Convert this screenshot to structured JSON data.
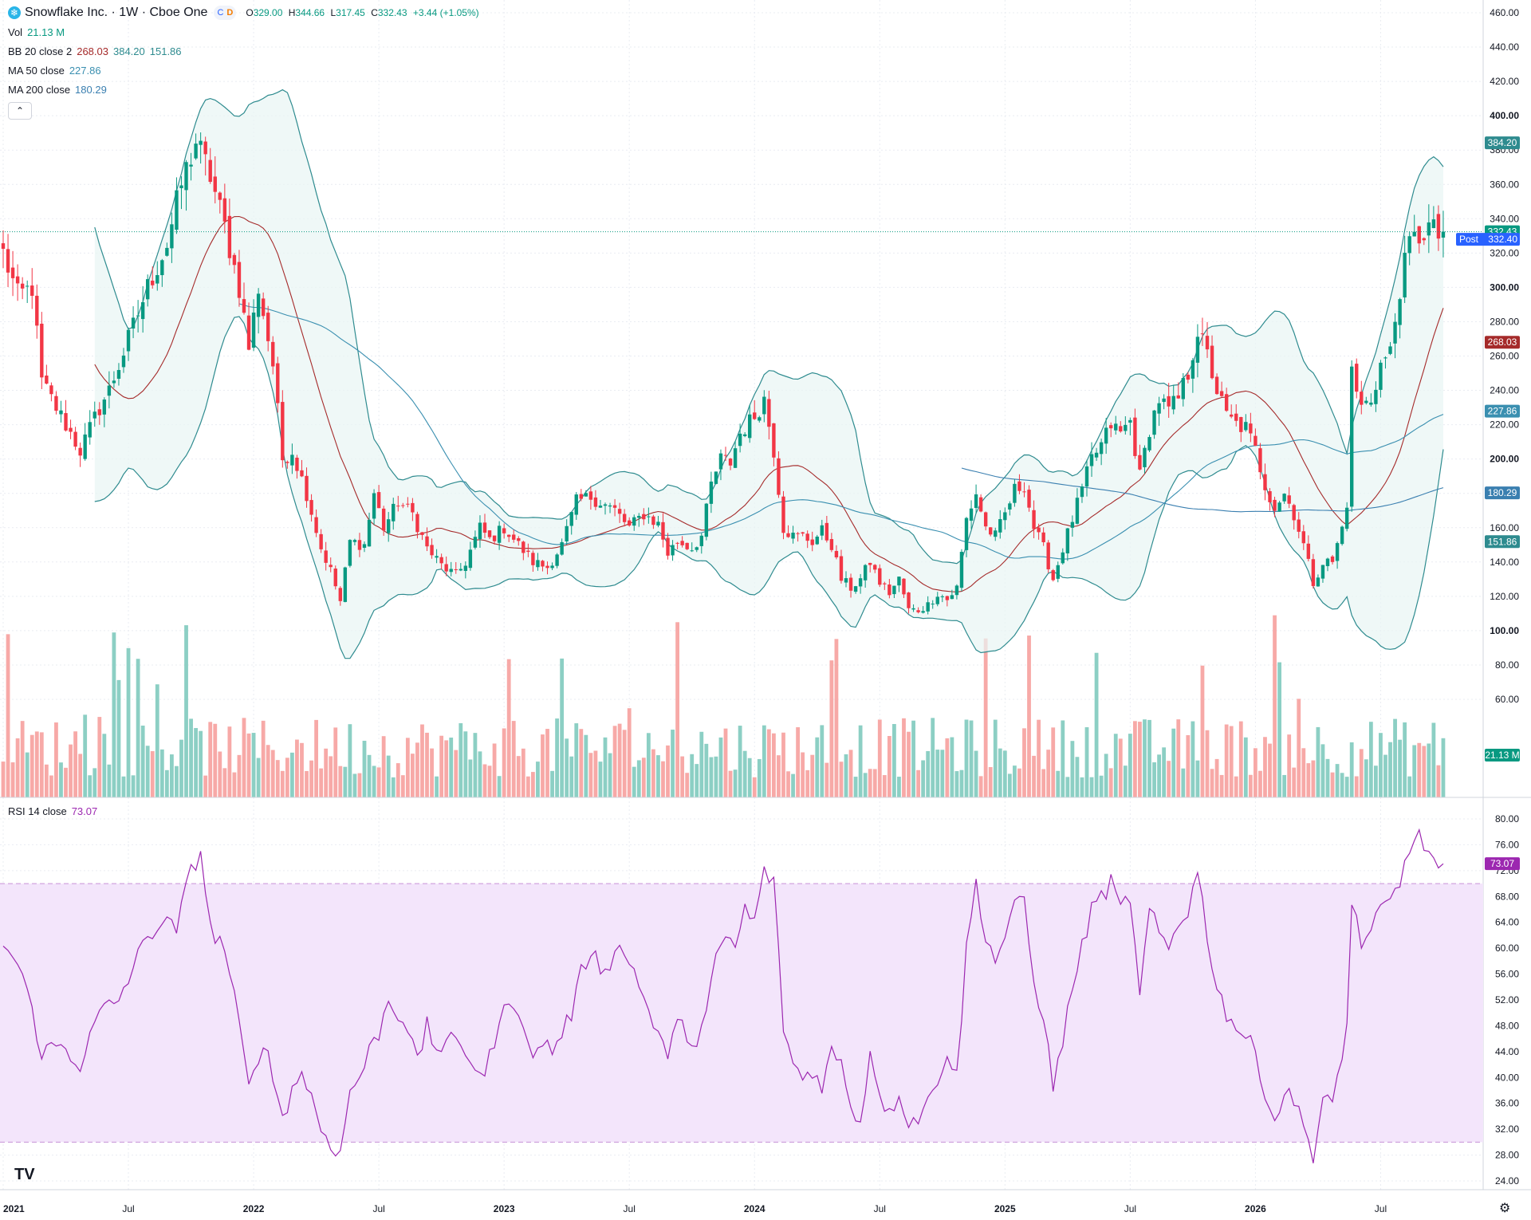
{
  "header": {
    "symbol_icon": "snowflake-icon",
    "title": "Snowflake Inc. · 1W · Cboe One",
    "badge_a": "C",
    "badge_b": "D",
    "open_label": "O",
    "open": "329.00",
    "high_label": "H",
    "high": "344.66",
    "low_label": "L",
    "low": "317.45",
    "close_label": "C",
    "close": "332.43",
    "change": "+3.44 (+1.05%)"
  },
  "legend": {
    "vol_label": "Vol",
    "vol_value": "21.13 M",
    "bb_label": "BB 20 close 2",
    "bb_mid": "268.03",
    "bb_upper": "384.20",
    "bb_lower": "151.86",
    "ma50_label": "MA 50 close",
    "ma50_value": "227.86",
    "ma200_label": "MA 200 close",
    "ma200_value": "180.29",
    "rsi_label": "RSI 14 close",
    "rsi_value": "73.07"
  },
  "collapse_icon": "chevron-up-icon",
  "tv_logo": "TV",
  "settings_icon": "gear-icon",
  "colors": {
    "up": "#089981",
    "down": "#f23645",
    "vol_up": "#8ccfc4",
    "vol_down": "#f7a9a7",
    "bb_line": "#2e8b8f",
    "bb_fill": "#e8f5f3",
    "bb_mid": "#a52a2a",
    "ma50": "#3a8fb0",
    "ma200": "#3a7fb0",
    "rsi": "#9c27b0",
    "rsi_band": "#f3e5fb",
    "last_price": "#089981",
    "post": "#2962ff"
  },
  "chart_data": [
    {
      "type": "candlestick",
      "title": "Snowflake Inc. · 1W · Cboe One",
      "timeframe": "1W",
      "x_ticks": [
        "2021",
        "Jul",
        "2022",
        "Jul",
        "2023",
        "Jul",
        "2024",
        "Jul",
        "2025",
        "Jul",
        "2026",
        "Jul"
      ],
      "y_ticks": [
        "460.00",
        "440.00",
        "420.00",
        "400.00",
        "380.00",
        "360.00",
        "340.00",
        "320.00",
        "300.00",
        "280.00",
        "260.00",
        "240.00",
        "220.00",
        "200.00",
        "180.00",
        "160.00",
        "140.00",
        "120.00",
        "100.00",
        "80.00",
        "60.00"
      ],
      "ylim": [
        53,
        463
      ],
      "last": {
        "open": 329.0,
        "high": 344.66,
        "low": 317.45,
        "close": 332.43,
        "change": 3.44,
        "change_pct": 1.05
      },
      "post_label": "Post",
      "post_price": "332.40",
      "price_labels": [
        "384.20",
        "332.43",
        "268.03",
        "227.86",
        "180.29",
        "151.86",
        "21.13 M"
      ],
      "price_anchors": [
        {
          "t": 0,
          "p": 320
        },
        {
          "t": 3,
          "p": 295
        },
        {
          "t": 6,
          "p": 300
        },
        {
          "t": 8,
          "p": 245
        },
        {
          "t": 12,
          "p": 225
        },
        {
          "t": 16,
          "p": 205
        },
        {
          "t": 20,
          "p": 230
        },
        {
          "t": 22,
          "p": 240
        },
        {
          "t": 25,
          "p": 262
        },
        {
          "t": 30,
          "p": 300
        },
        {
          "t": 34,
          "p": 325
        },
        {
          "t": 37,
          "p": 360
        },
        {
          "t": 40,
          "p": 385
        },
        {
          "t": 43,
          "p": 365
        },
        {
          "t": 46,
          "p": 335
        },
        {
          "t": 49,
          "p": 300
        },
        {
          "t": 51,
          "p": 265
        },
        {
          "t": 53,
          "p": 300
        },
        {
          "t": 56,
          "p": 255
        },
        {
          "t": 58,
          "p": 200
        },
        {
          "t": 60,
          "p": 205
        },
        {
          "t": 63,
          "p": 180
        },
        {
          "t": 66,
          "p": 148
        },
        {
          "t": 68,
          "p": 135
        },
        {
          "t": 70,
          "p": 117
        },
        {
          "t": 72,
          "p": 152
        },
        {
          "t": 75,
          "p": 150
        },
        {
          "t": 77,
          "p": 180
        },
        {
          "t": 79,
          "p": 160
        },
        {
          "t": 82,
          "p": 175
        },
        {
          "t": 85,
          "p": 168
        },
        {
          "t": 88,
          "p": 148
        },
        {
          "t": 91,
          "p": 138
        },
        {
          "t": 94,
          "p": 132
        },
        {
          "t": 96,
          "p": 140
        },
        {
          "t": 99,
          "p": 160
        },
        {
          "t": 101,
          "p": 153
        },
        {
          "t": 104,
          "p": 160
        },
        {
          "t": 107,
          "p": 150
        },
        {
          "t": 110,
          "p": 140
        },
        {
          "t": 113,
          "p": 137
        },
        {
          "t": 116,
          "p": 150
        },
        {
          "t": 119,
          "p": 175
        },
        {
          "t": 122,
          "p": 178
        },
        {
          "t": 124,
          "p": 175
        },
        {
          "t": 127,
          "p": 170
        },
        {
          "t": 130,
          "p": 160
        },
        {
          "t": 133,
          "p": 168
        },
        {
          "t": 136,
          "p": 162
        },
        {
          "t": 138,
          "p": 145
        },
        {
          "t": 140,
          "p": 152
        },
        {
          "t": 143,
          "p": 148
        },
        {
          "t": 145,
          "p": 155
        },
        {
          "t": 147,
          "p": 185
        },
        {
          "t": 149,
          "p": 200
        },
        {
          "t": 151,
          "p": 198
        },
        {
          "t": 153,
          "p": 215
        },
        {
          "t": 156,
          "p": 225
        },
        {
          "t": 158,
          "p": 235
        },
        {
          "t": 160,
          "p": 205
        },
        {
          "t": 162,
          "p": 160
        },
        {
          "t": 164,
          "p": 155
        },
        {
          "t": 166,
          "p": 155
        },
        {
          "t": 168,
          "p": 152
        },
        {
          "t": 170,
          "p": 158
        },
        {
          "t": 172,
          "p": 150
        },
        {
          "t": 174,
          "p": 130
        },
        {
          "t": 176,
          "p": 125
        },
        {
          "t": 178,
          "p": 130
        },
        {
          "t": 180,
          "p": 140
        },
        {
          "t": 182,
          "p": 128
        },
        {
          "t": 184,
          "p": 122
        },
        {
          "t": 186,
          "p": 130
        },
        {
          "t": 188,
          "p": 112
        },
        {
          "t": 190,
          "p": 112
        },
        {
          "t": 192,
          "p": 115
        },
        {
          "t": 194,
          "p": 122
        },
        {
          "t": 196,
          "p": 118
        },
        {
          "t": 198,
          "p": 125
        },
        {
          "t": 200,
          "p": 165
        },
        {
          "t": 202,
          "p": 180
        },
        {
          "t": 204,
          "p": 160
        },
        {
          "t": 206,
          "p": 155
        },
        {
          "t": 208,
          "p": 168
        },
        {
          "t": 210,
          "p": 182
        },
        {
          "t": 212,
          "p": 185
        },
        {
          "t": 214,
          "p": 160
        },
        {
          "t": 216,
          "p": 148
        },
        {
          "t": 218,
          "p": 130
        },
        {
          "t": 220,
          "p": 148
        },
        {
          "t": 222,
          "p": 165
        },
        {
          "t": 224,
          "p": 182
        },
        {
          "t": 226,
          "p": 200
        },
        {
          "t": 228,
          "p": 208
        },
        {
          "t": 230,
          "p": 220
        },
        {
          "t": 232,
          "p": 215
        },
        {
          "t": 234,
          "p": 222
        },
        {
          "t": 236,
          "p": 190
        },
        {
          "t": 238,
          "p": 218
        },
        {
          "t": 240,
          "p": 235
        },
        {
          "t": 242,
          "p": 228
        },
        {
          "t": 244,
          "p": 235
        },
        {
          "t": 246,
          "p": 250
        },
        {
          "t": 248,
          "p": 275
        },
        {
          "t": 250,
          "p": 260
        },
        {
          "t": 252,
          "p": 240
        },
        {
          "t": 254,
          "p": 225
        },
        {
          "t": 256,
          "p": 220
        },
        {
          "t": 258,
          "p": 218
        },
        {
          "t": 260,
          "p": 205
        },
        {
          "t": 262,
          "p": 185
        },
        {
          "t": 264,
          "p": 172
        },
        {
          "t": 266,
          "p": 180
        },
        {
          "t": 268,
          "p": 168
        },
        {
          "t": 270,
          "p": 150
        },
        {
          "t": 272,
          "p": 128
        },
        {
          "t": 274,
          "p": 140
        },
        {
          "t": 276,
          "p": 140
        },
        {
          "t": 278,
          "p": 160
        },
        {
          "t": 279,
          "p": 175
        },
        {
          "t": 280,
          "p": 250
        },
        {
          "t": 282,
          "p": 230
        },
        {
          "t": 284,
          "p": 235
        },
        {
          "t": 286,
          "p": 255
        },
        {
          "t": 288,
          "p": 262
        },
        {
          "t": 290,
          "p": 300
        },
        {
          "t": 292,
          "p": 325
        },
        {
          "t": 294,
          "p": 330
        },
        {
          "t": 296,
          "p": 335
        },
        {
          "t": 298,
          "p": 330
        },
        {
          "t": 299,
          "p": 332.43
        }
      ],
      "series": [
        {
          "name": "Vol",
          "last": "21.13 M"
        },
        {
          "name": "BB 20 close 2",
          "basis": 268.03,
          "upper": 384.2,
          "lower": 151.86
        },
        {
          "name": "MA 50 close",
          "last": 227.86
        },
        {
          "name": "MA 200 close",
          "last": 180.29
        }
      ]
    },
    {
      "type": "line",
      "title": "RSI 14 close",
      "y_ticks": [
        "80.00",
        "76.00",
        "72.00",
        "68.00",
        "64.00",
        "60.00",
        "56.00",
        "52.00",
        "48.00",
        "44.00",
        "40.00",
        "36.00",
        "32.00",
        "28.00",
        "24.00"
      ],
      "ylim": [
        22.4,
        81.6
      ],
      "band": [
        30,
        70
      ],
      "last": "73.07",
      "anchors": [
        {
          "t": 0,
          "v": 61
        },
        {
          "t": 4,
          "v": 56
        },
        {
          "t": 8,
          "v": 44
        },
        {
          "t": 12,
          "v": 45
        },
        {
          "t": 16,
          "v": 42
        },
        {
          "t": 20,
          "v": 50
        },
        {
          "t": 24,
          "v": 52
        },
        {
          "t": 27,
          "v": 57
        },
        {
          "t": 30,
          "v": 62
        },
        {
          "t": 33,
          "v": 64
        },
        {
          "t": 36,
          "v": 63
        },
        {
          "t": 39,
          "v": 72
        },
        {
          "t": 41,
          "v": 75
        },
        {
          "t": 43,
          "v": 63
        },
        {
          "t": 46,
          "v": 60
        },
        {
          "t": 49,
          "v": 48
        },
        {
          "t": 51,
          "v": 38
        },
        {
          "t": 52,
          "v": 41
        },
        {
          "t": 54,
          "v": 46
        },
        {
          "t": 56,
          "v": 40
        },
        {
          "t": 58,
          "v": 34
        },
        {
          "t": 60,
          "v": 38
        },
        {
          "t": 62,
          "v": 41
        },
        {
          "t": 64,
          "v": 37
        },
        {
          "t": 66,
          "v": 32
        },
        {
          "t": 68,
          "v": 30
        },
        {
          "t": 70,
          "v": 28
        },
        {
          "t": 72,
          "v": 38
        },
        {
          "t": 74,
          "v": 40
        },
        {
          "t": 76,
          "v": 44
        },
        {
          "t": 78,
          "v": 47
        },
        {
          "t": 80,
          "v": 52
        },
        {
          "t": 82,
          "v": 50
        },
        {
          "t": 84,
          "v": 48
        },
        {
          "t": 86,
          "v": 42
        },
        {
          "t": 88,
          "v": 48
        },
        {
          "t": 90,
          "v": 44
        },
        {
          "t": 92,
          "v": 46
        },
        {
          "t": 94,
          "v": 45
        },
        {
          "t": 96,
          "v": 44
        },
        {
          "t": 98,
          "v": 42
        },
        {
          "t": 100,
          "v": 40
        },
        {
          "t": 102,
          "v": 46
        },
        {
          "t": 104,
          "v": 50
        },
        {
          "t": 106,
          "v": 52
        },
        {
          "t": 108,
          "v": 49
        },
        {
          "t": 110,
          "v": 42
        },
        {
          "t": 112,
          "v": 46
        },
        {
          "t": 114,
          "v": 44
        },
        {
          "t": 116,
          "v": 47
        },
        {
          "t": 118,
          "v": 50
        },
        {
          "t": 120,
          "v": 56
        },
        {
          "t": 122,
          "v": 60
        },
        {
          "t": 124,
          "v": 57
        },
        {
          "t": 126,
          "v": 58
        },
        {
          "t": 128,
          "v": 60
        },
        {
          "t": 130,
          "v": 58
        },
        {
          "t": 132,
          "v": 55
        },
        {
          "t": 134,
          "v": 50
        },
        {
          "t": 136,
          "v": 46
        },
        {
          "t": 138,
          "v": 44
        },
        {
          "t": 140,
          "v": 48
        },
        {
          "t": 142,
          "v": 47
        },
        {
          "t": 144,
          "v": 45
        },
        {
          "t": 146,
          "v": 50
        },
        {
          "t": 148,
          "v": 58
        },
        {
          "t": 150,
          "v": 62
        },
        {
          "t": 152,
          "v": 60
        },
        {
          "t": 154,
          "v": 66
        },
        {
          "t": 156,
          "v": 64
        },
        {
          "t": 158,
          "v": 72
        },
        {
          "t": 160,
          "v": 70
        },
        {
          "t": 162,
          "v": 48
        },
        {
          "t": 164,
          "v": 42
        },
        {
          "t": 166,
          "v": 40
        },
        {
          "t": 168,
          "v": 41
        },
        {
          "t": 170,
          "v": 39
        },
        {
          "t": 172,
          "v": 44
        },
        {
          "t": 174,
          "v": 42
        },
        {
          "t": 176,
          "v": 36
        },
        {
          "t": 178,
          "v": 33
        },
        {
          "t": 180,
          "v": 44
        },
        {
          "t": 182,
          "v": 38
        },
        {
          "t": 184,
          "v": 34
        },
        {
          "t": 186,
          "v": 38
        },
        {
          "t": 188,
          "v": 33
        },
        {
          "t": 190,
          "v": 34
        },
        {
          "t": 192,
          "v": 36
        },
        {
          "t": 194,
          "v": 40
        },
        {
          "t": 196,
          "v": 44
        },
        {
          "t": 198,
          "v": 40
        },
        {
          "t": 200,
          "v": 60
        },
        {
          "t": 202,
          "v": 70
        },
        {
          "t": 204,
          "v": 62
        },
        {
          "t": 206,
          "v": 58
        },
        {
          "t": 208,
          "v": 62
        },
        {
          "t": 210,
          "v": 66
        },
        {
          "t": 212,
          "v": 68
        },
        {
          "t": 214,
          "v": 54
        },
        {
          "t": 216,
          "v": 50
        },
        {
          "t": 218,
          "v": 38
        },
        {
          "t": 220,
          "v": 46
        },
        {
          "t": 222,
          "v": 54
        },
        {
          "t": 224,
          "v": 60
        },
        {
          "t": 226,
          "v": 66
        },
        {
          "t": 228,
          "v": 68
        },
        {
          "t": 230,
          "v": 70
        },
        {
          "t": 232,
          "v": 66
        },
        {
          "t": 234,
          "v": 68
        },
        {
          "t": 236,
          "v": 52
        },
        {
          "t": 238,
          "v": 66
        },
        {
          "t": 240,
          "v": 62
        },
        {
          "t": 242,
          "v": 60
        },
        {
          "t": 244,
          "v": 64
        },
        {
          "t": 246,
          "v": 66
        },
        {
          "t": 248,
          "v": 72
        },
        {
          "t": 250,
          "v": 62
        },
        {
          "t": 252,
          "v": 54
        },
        {
          "t": 254,
          "v": 50
        },
        {
          "t": 256,
          "v": 48
        },
        {
          "t": 258,
          "v": 46
        },
        {
          "t": 260,
          "v": 44
        },
        {
          "t": 262,
          "v": 38
        },
        {
          "t": 264,
          "v": 33
        },
        {
          "t": 266,
          "v": 38
        },
        {
          "t": 268,
          "v": 36
        },
        {
          "t": 270,
          "v": 34
        },
        {
          "t": 272,
          "v": 27
        },
        {
          "t": 274,
          "v": 36
        },
        {
          "t": 276,
          "v": 36
        },
        {
          "t": 278,
          "v": 44
        },
        {
          "t": 279,
          "v": 48
        },
        {
          "t": 280,
          "v": 67
        },
        {
          "t": 282,
          "v": 61
        },
        {
          "t": 284,
          "v": 62
        },
        {
          "t": 286,
          "v": 66
        },
        {
          "t": 288,
          "v": 67
        },
        {
          "t": 290,
          "v": 70
        },
        {
          "t": 292,
          "v": 76
        },
        {
          "t": 294,
          "v": 77
        },
        {
          "t": 296,
          "v": 75
        },
        {
          "t": 298,
          "v": 72
        },
        {
          "t": 299,
          "v": 73.07
        }
      ]
    }
  ]
}
